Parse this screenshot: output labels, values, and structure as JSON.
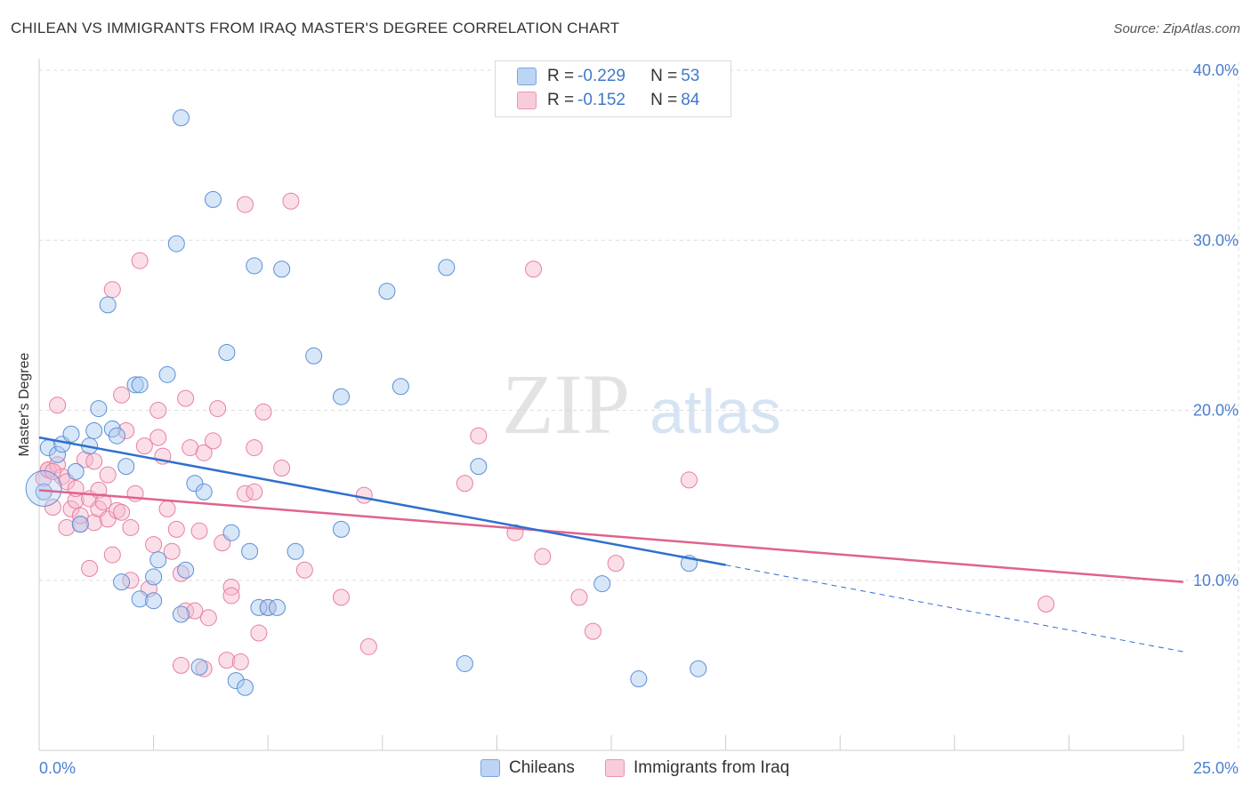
{
  "header": {
    "title": "CHILEAN VS IMMIGRANTS FROM IRAQ MASTER'S DEGREE CORRELATION CHART",
    "source": "Source: ZipAtlas.com"
  },
  "watermark": {
    "zip": "ZIP",
    "atlas": "atlas"
  },
  "legend": {
    "rows": [
      {
        "r_label": "R = ",
        "r_value": "-0.229",
        "n_label": "N = ",
        "n_value": "53",
        "color": "#a9c9f0"
      },
      {
        "r_label": "R = ",
        "r_value": "-0.152",
        "n_label": "N = ",
        "n_value": "84",
        "color": "#f6b8cb"
      }
    ]
  },
  "bottom_legend": {
    "series1": "Chileans",
    "series2": "Immigrants from Iraq"
  },
  "colors": {
    "blue_fill": "#a9c9f0",
    "blue_stroke": "#5b8fd6",
    "blue_line": "#2f6fce",
    "pink_fill": "#f6b8cb",
    "pink_stroke": "#e77fa2",
    "pink_line": "#e0628f",
    "tick_text": "#4a7fd0",
    "grid": "#dddddd"
  },
  "chart_data": {
    "type": "scatter",
    "title": "CHILEAN VS IMMIGRANTS FROM IRAQ MASTER'S DEGREE CORRELATION CHART",
    "xlabel": "",
    "ylabel": "Master's Degree",
    "xlim": [
      0,
      25
    ],
    "ylim": [
      0,
      40
    ],
    "x_tick_labels": [
      "0.0%",
      "25.0%"
    ],
    "y_tick_labels": [
      "10.0%",
      "20.0%",
      "30.0%",
      "40.0%"
    ],
    "y_ticks": [
      10,
      20,
      30,
      40
    ],
    "grid": true,
    "legend_position": "top-center",
    "series": [
      {
        "name": "Chileans",
        "r": -0.229,
        "n": 53,
        "points": [
          [
            0.1,
            15.2
          ],
          [
            0.2,
            17.8
          ],
          [
            0.4,
            17.4
          ],
          [
            0.5,
            18
          ],
          [
            0.7,
            18.6
          ],
          [
            0.8,
            16.4
          ],
          [
            0.9,
            13.3
          ],
          [
            1.1,
            17.9
          ],
          [
            1.2,
            18.8
          ],
          [
            1.3,
            20.1
          ],
          [
            1.6,
            18.9
          ],
          [
            1.7,
            18.5
          ],
          [
            1.5,
            26.2
          ],
          [
            1.8,
            9.9
          ],
          [
            1.9,
            16.7
          ],
          [
            2.1,
            21.5
          ],
          [
            2.2,
            21.5
          ],
          [
            2.2,
            8.9
          ],
          [
            2.5,
            10.2
          ],
          [
            2.5,
            8.8
          ],
          [
            2.6,
            11.2
          ],
          [
            2.8,
            22.1
          ],
          [
            3.0,
            29.8
          ],
          [
            3.1,
            8.0
          ],
          [
            3.1,
            37.2
          ],
          [
            3.2,
            10.6
          ],
          [
            3.4,
            15.7
          ],
          [
            3.5,
            4.9
          ],
          [
            3.6,
            15.2
          ],
          [
            3.8,
            32.4
          ],
          [
            4.1,
            23.4
          ],
          [
            4.2,
            12.8
          ],
          [
            4.3,
            4.1
          ],
          [
            4.5,
            3.7
          ],
          [
            4.6,
            11.7
          ],
          [
            4.7,
            28.5
          ],
          [
            4.8,
            8.4
          ],
          [
            5.0,
            8.4
          ],
          [
            5.3,
            28.3
          ],
          [
            5.6,
            11.7
          ],
          [
            6.0,
            23.2
          ],
          [
            6.6,
            20.8
          ],
          [
            6.6,
            13.0
          ],
          [
            7.6,
            27.0
          ],
          [
            7.9,
            21.4
          ],
          [
            8.9,
            28.4
          ],
          [
            9.3,
            5.1
          ],
          [
            9.6,
            16.7
          ],
          [
            12.3,
            9.8
          ],
          [
            13.1,
            4.2
          ],
          [
            14.2,
            11.0
          ],
          [
            14.4,
            4.8
          ],
          [
            5.2,
            8.4
          ]
        ]
      },
      {
        "name": "Immigrants from Iraq",
        "r": -0.152,
        "n": 84,
        "points": [
          [
            0.1,
            16.0
          ],
          [
            0.2,
            16.5
          ],
          [
            0.2,
            16.5
          ],
          [
            0.3,
            14.3
          ],
          [
            0.4,
            16.8
          ],
          [
            0.4,
            20.3
          ],
          [
            0.5,
            16.1
          ],
          [
            0.6,
            15.8
          ],
          [
            0.6,
            13.1
          ],
          [
            0.7,
            14.2
          ],
          [
            0.8,
            14.7
          ],
          [
            0.8,
            15.4
          ],
          [
            0.9,
            13.3
          ],
          [
            0.9,
            13.8
          ],
          [
            1.0,
            17.1
          ],
          [
            1.1,
            14.8
          ],
          [
            1.1,
            10.7
          ],
          [
            1.2,
            13.4
          ],
          [
            1.2,
            17.0
          ],
          [
            1.3,
            15.3
          ],
          [
            1.3,
            14.2
          ],
          [
            1.4,
            14.6
          ],
          [
            1.5,
            13.6
          ],
          [
            1.5,
            16.2
          ],
          [
            1.6,
            11.5
          ],
          [
            1.6,
            27.1
          ],
          [
            1.7,
            14.1
          ],
          [
            1.8,
            20.9
          ],
          [
            1.8,
            14.0
          ],
          [
            1.9,
            18.8
          ],
          [
            2.0,
            10.0
          ],
          [
            2.0,
            13.1
          ],
          [
            2.1,
            15.1
          ],
          [
            2.2,
            28.8
          ],
          [
            2.3,
            17.9
          ],
          [
            2.4,
            9.5
          ],
          [
            2.5,
            12.1
          ],
          [
            2.6,
            20.0
          ],
          [
            2.6,
            18.4
          ],
          [
            2.7,
            17.3
          ],
          [
            2.8,
            14.2
          ],
          [
            2.9,
            11.7
          ],
          [
            3.0,
            13.0
          ],
          [
            3.1,
            10.4
          ],
          [
            3.1,
            5.0
          ],
          [
            3.2,
            8.2
          ],
          [
            3.2,
            20.7
          ],
          [
            3.3,
            17.8
          ],
          [
            3.4,
            8.2
          ],
          [
            3.5,
            12.9
          ],
          [
            3.6,
            17.5
          ],
          [
            3.6,
            4.8
          ],
          [
            3.7,
            7.8
          ],
          [
            3.8,
            18.2
          ],
          [
            3.9,
            20.1
          ],
          [
            4.0,
            12.2
          ],
          [
            4.1,
            5.3
          ],
          [
            4.2,
            9.6
          ],
          [
            4.2,
            9.1
          ],
          [
            4.4,
            5.2
          ],
          [
            4.5,
            15.1
          ],
          [
            4.5,
            32.1
          ],
          [
            4.7,
            15.2
          ],
          [
            4.7,
            17.8
          ],
          [
            4.8,
            6.9
          ],
          [
            4.9,
            19.9
          ],
          [
            5.0,
            8.4
          ],
          [
            5.3,
            16.6
          ],
          [
            5.5,
            32.3
          ],
          [
            5.8,
            10.6
          ],
          [
            6.6,
            9.0
          ],
          [
            7.1,
            15.0
          ],
          [
            7.2,
            6.1
          ],
          [
            9.3,
            15.7
          ],
          [
            9.6,
            18.5
          ],
          [
            10.4,
            12.8
          ],
          [
            10.8,
            28.3
          ],
          [
            11.0,
            11.4
          ],
          [
            11.8,
            9.0
          ],
          [
            12.1,
            7.0
          ],
          [
            12.6,
            11.0
          ],
          [
            14.2,
            15.9
          ],
          [
            22.0,
            8.6
          ],
          [
            0.3,
            16.4
          ]
        ]
      }
    ],
    "trend_lines": [
      {
        "series": "Chileans",
        "x": [
          0,
          15
        ],
        "y": [
          18.4,
          10.9
        ],
        "dashed_extension": {
          "x": [
            15,
            25
          ],
          "y": [
            10.9,
            5.8
          ]
        }
      },
      {
        "series": "Immigrants from Iraq",
        "x": [
          0,
          25
        ],
        "y": [
          15.3,
          9.9
        ]
      }
    ]
  }
}
